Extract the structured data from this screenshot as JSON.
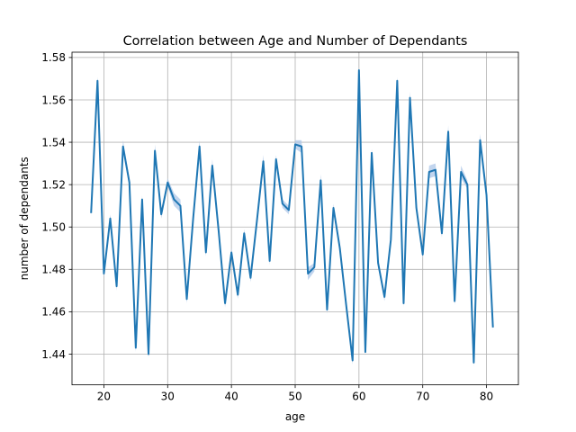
{
  "chart_data": {
    "type": "line",
    "title": "Correlation between Age and Number of Dependants",
    "xlabel": "age",
    "ylabel": "number of dependants",
    "xlim": [
      15,
      85
    ],
    "ylim": [
      1.4255,
      1.5825
    ],
    "xticks": [
      20,
      30,
      40,
      50,
      60,
      70,
      80
    ],
    "yticks": [
      1.44,
      1.46,
      1.48,
      1.5,
      1.52,
      1.54,
      1.56,
      1.58
    ],
    "ytick_labels": [
      "1.44",
      "1.46",
      "1.48",
      "1.50",
      "1.52",
      "1.54",
      "1.56",
      "1.58"
    ],
    "grid": true,
    "legend": "none",
    "line_color": "#1f77b4",
    "band_color": "#aec7e8",
    "series": [
      {
        "x": [
          18,
          19,
          20,
          21,
          22,
          23,
          24,
          25,
          26,
          27,
          28,
          29,
          30,
          31,
          32,
          33,
          34,
          35,
          36,
          37,
          38,
          39,
          40,
          41,
          42,
          43,
          44,
          45,
          46,
          47,
          48,
          49,
          50,
          51,
          52,
          53,
          54,
          55,
          56,
          57,
          58,
          59,
          60,
          61,
          62,
          63,
          64,
          65,
          66,
          67,
          68,
          69,
          70,
          71,
          72,
          73,
          74,
          75,
          76,
          77,
          78,
          79,
          80,
          81
        ],
        "values": [
          1.507,
          1.569,
          1.478,
          1.504,
          1.472,
          1.538,
          1.521,
          1.443,
          1.513,
          1.44,
          1.536,
          1.506,
          1.521,
          1.513,
          1.51,
          1.466,
          1.504,
          1.538,
          1.488,
          1.529,
          1.498,
          1.464,
          1.488,
          1.468,
          1.497,
          1.476,
          1.503,
          1.531,
          1.484,
          1.532,
          1.511,
          1.508,
          1.539,
          1.538,
          1.478,
          1.481,
          1.522,
          1.461,
          1.509,
          1.49,
          1.463,
          1.437,
          1.574,
          1.441,
          1.535,
          1.483,
          1.467,
          1.494,
          1.569,
          1.464,
          1.561,
          1.509,
          1.487,
          1.526,
          1.527,
          1.497,
          1.545,
          1.465,
          1.526,
          1.52,
          1.436,
          1.541,
          1.515,
          1.453
        ],
        "ci_halfwidth": [
          0.002,
          0.002,
          0.002,
          0.002,
          0.002,
          0.003,
          0.002,
          0.002,
          0.002,
          0.002,
          0.003,
          0.002,
          0.002,
          0.003,
          0.003,
          0.002,
          0.002,
          0.003,
          0.002,
          0.003,
          0.002,
          0.002,
          0.002,
          0.002,
          0.002,
          0.002,
          0.002,
          0.003,
          0.002,
          0.002,
          0.002,
          0.002,
          0.002,
          0.003,
          0.003,
          0.002,
          0.003,
          0.002,
          0.002,
          0.002,
          0.002,
          0.002,
          0.002,
          0.002,
          0.002,
          0.002,
          0.002,
          0.002,
          0.002,
          0.002,
          0.003,
          0.002,
          0.002,
          0.003,
          0.003,
          0.002,
          0.003,
          0.002,
          0.003,
          0.002,
          0.002,
          0.003,
          0.002,
          0.002
        ]
      }
    ]
  }
}
